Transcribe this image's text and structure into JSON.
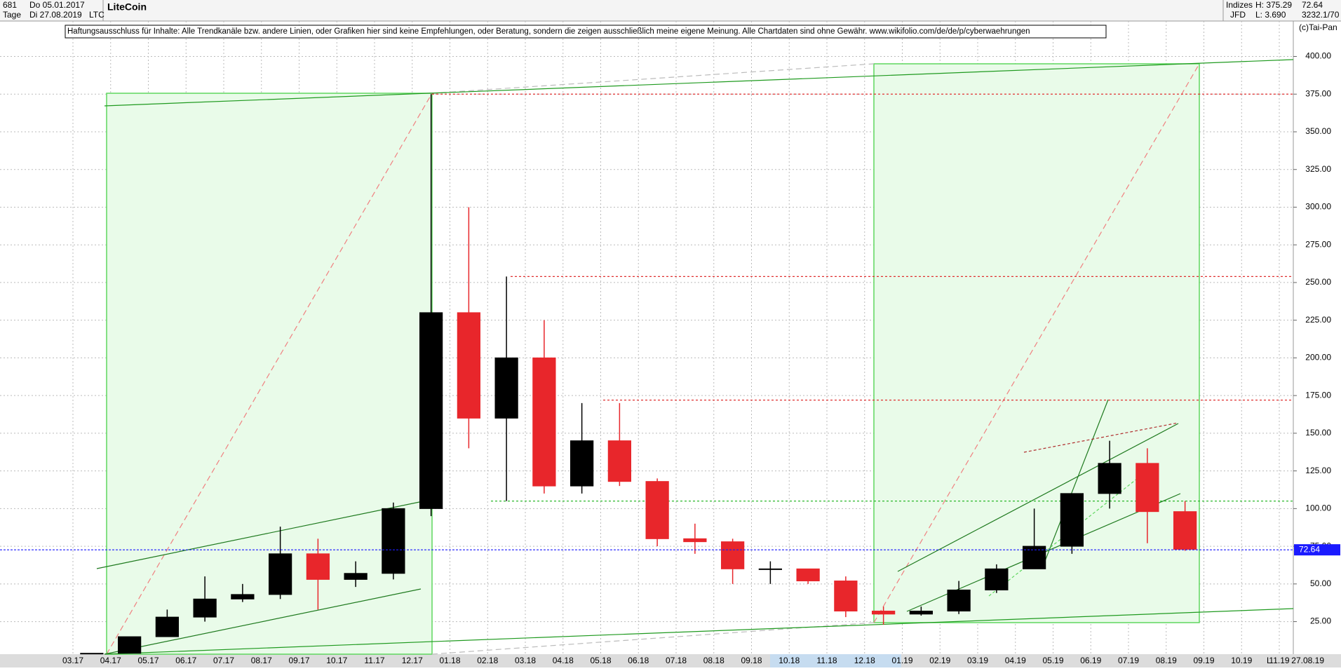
{
  "header": {
    "count": "681",
    "from": "Do 05.01.2017",
    "unit": "Tage",
    "to": "Di 27.08.2019",
    "title": "LiteCoin",
    "symbol": "LTC",
    "group": "Indizes",
    "source": "JFD",
    "high": "H: 375.29",
    "low": "L: 3.690",
    "last": "72.64",
    "volume": "3232.1/70",
    "copyright": "(c)Tai-Pan"
  },
  "footer": {
    "date": "27.08.19",
    "scale": "L"
  },
  "chart_data": {
    "type": "candlestick",
    "annotation": "Haftungsausschluss für Inhalte: Alle Trendkanäle bzw. andere Linien, oder Grafiken hier sind keine Empfehlungen, oder Beratung, sondern die zeigen ausschließlich meine eigene Meinung. Alle Chartdaten sind ohne Gewähr.  www.wikifolio.com/de/de/p/cyberwaehrungen",
    "categories": [
      "03.17",
      "04.17",
      "05.17",
      "06.17",
      "07.17",
      "08.17",
      "09.17",
      "10.17",
      "11.17",
      "12.17",
      "01.18",
      "02.18",
      "03.18",
      "04.18",
      "05.18",
      "06.18",
      "07.18",
      "08.18",
      "09.18",
      "10.18",
      "11.18",
      "12.18",
      "01.19",
      "02.19",
      "03.19",
      "04.19",
      "05.19",
      "06.19",
      "07.19",
      "08.19",
      "09.19",
      "10.19",
      "11.19"
    ],
    "open": [
      4,
      4,
      15,
      28,
      40,
      43,
      70,
      53,
      57,
      100,
      230,
      160,
      200,
      115,
      145,
      118,
      80,
      78,
      60,
      60,
      52,
      32,
      30,
      32,
      46,
      60,
      75,
      110,
      130,
      98,
      null,
      null,
      null
    ],
    "high": [
      4,
      15,
      33,
      55,
      50,
      88,
      80,
      65,
      104,
      375,
      300,
      254,
      225,
      170,
      170,
      120,
      90,
      80,
      65,
      60,
      55,
      35,
      35,
      52,
      63,
      100,
      110,
      145,
      140,
      105,
      null,
      null,
      null
    ],
    "low": [
      3.7,
      4,
      15,
      25,
      38,
      40,
      33,
      48,
      53,
      95,
      140,
      105,
      110,
      110,
      115,
      75,
      70,
      50,
      50,
      50,
      28,
      23,
      29,
      30,
      44,
      60,
      70,
      100,
      77,
      72,
      null,
      null,
      null
    ],
    "close": [
      4,
      15,
      28,
      40,
      43,
      70,
      53,
      57,
      100,
      230,
      160,
      200,
      115,
      145,
      118,
      80,
      78,
      60,
      60,
      52,
      32,
      30,
      32,
      46,
      60,
      75,
      110,
      130,
      98,
      73,
      null,
      null,
      null
    ],
    "up_color": "#000000",
    "down_color": "#e8262b",
    "ylim": [
      3.4,
      423.5
    ],
    "yticks": [
      {
        "value": 25,
        "label": "25.00"
      },
      {
        "value": 50,
        "label": "50.00"
      },
      {
        "value": 75,
        "label": "75.00"
      },
      {
        "value": 100,
        "label": "100.00"
      },
      {
        "value": 125,
        "label": "125.00"
      },
      {
        "value": 150,
        "label": "150.00"
      },
      {
        "value": 175,
        "label": "175.00"
      },
      {
        "value": 200,
        "label": "200.00"
      },
      {
        "value": 225,
        "label": "225.00"
      },
      {
        "value": 250,
        "label": "250.00"
      },
      {
        "value": 275,
        "label": "275.00"
      },
      {
        "value": 300,
        "label": "300.00"
      },
      {
        "value": 325,
        "label": "325.00"
      },
      {
        "value": 350,
        "label": "350.00"
      },
      {
        "value": 375,
        "label": "375.00"
      },
      {
        "value": 400,
        "label": "400.00"
      }
    ],
    "grid": true,
    "last_price": 72.64,
    "last_price_color": "#1a1aff",
    "levels": [
      {
        "value": 375,
        "color": "#e03030"
      },
      {
        "value": 254,
        "color": "#e03030"
      },
      {
        "value": 172,
        "color": "#e03030"
      },
      {
        "value": 105,
        "color": "#2bb82b"
      }
    ]
  }
}
